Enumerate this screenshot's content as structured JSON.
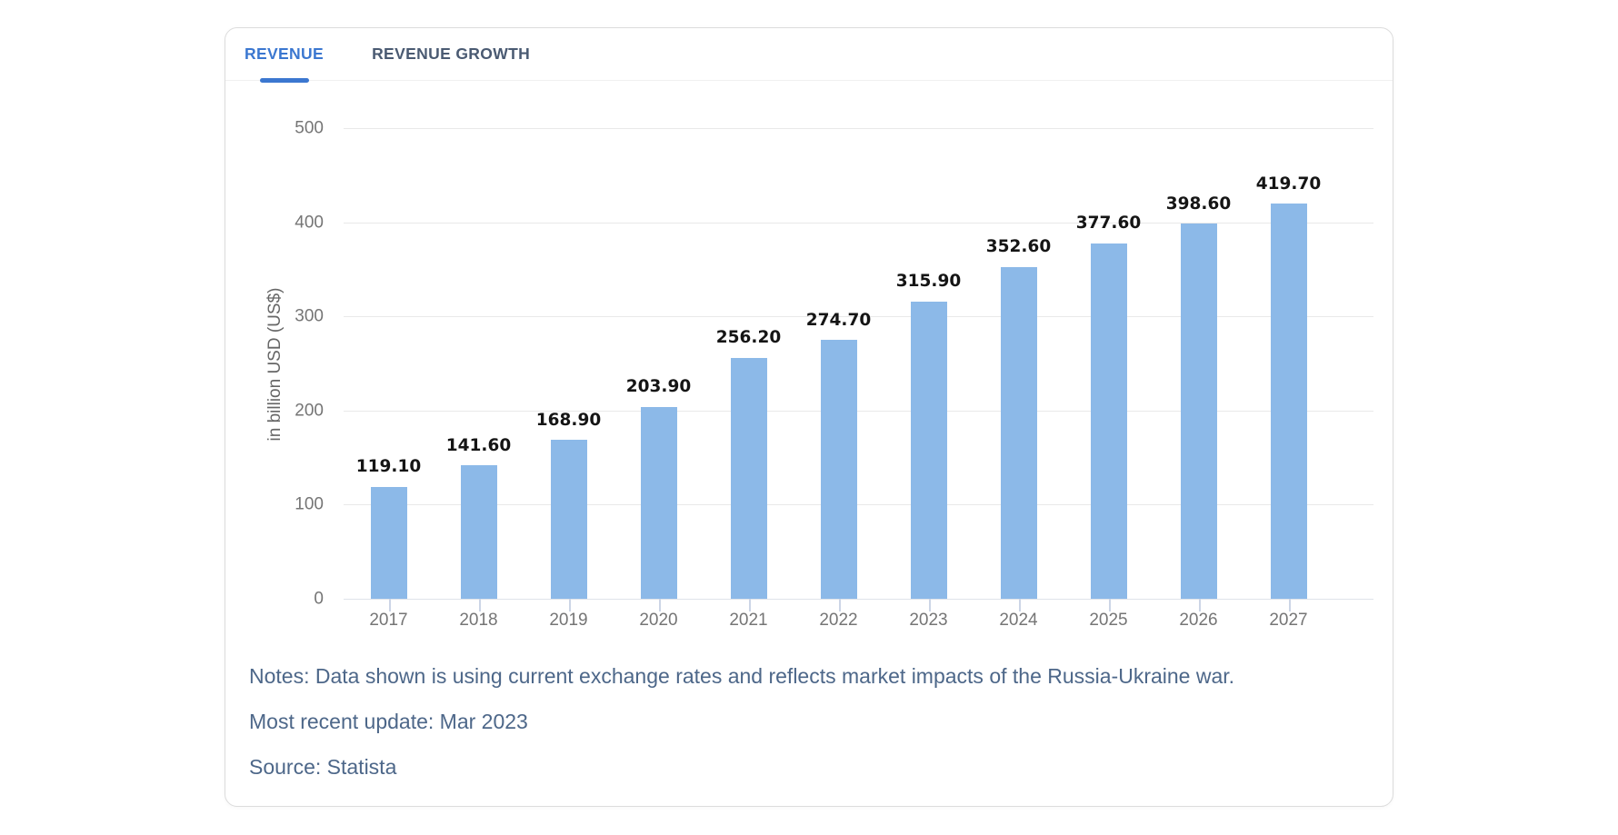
{
  "tabs": [
    {
      "label": "REVENUE",
      "active": true
    },
    {
      "label": "REVENUE GROWTH",
      "active": false
    }
  ],
  "chart_data": {
    "type": "bar",
    "title": "",
    "categories": [
      "2017",
      "2018",
      "2019",
      "2020",
      "2021",
      "2022",
      "2023",
      "2024",
      "2025",
      "2026",
      "2027"
    ],
    "values": [
      119.1,
      141.6,
      168.9,
      203.9,
      256.2,
      274.7,
      315.9,
      352.6,
      377.6,
      398.6,
      419.7
    ],
    "value_labels": [
      "119.10",
      "141.60",
      "168.90",
      "203.90",
      "256.20",
      "274.70",
      "315.90",
      "352.60",
      "377.60",
      "398.60",
      "419.70"
    ],
    "xlabel": "",
    "ylabel": "in billion USD (US$)",
    "yticks": [
      0,
      100,
      200,
      300,
      400,
      500
    ],
    "ylim": [
      0,
      500
    ],
    "grid": "horizontal",
    "legend": "none",
    "bar_color": "#8CB9E8"
  },
  "footer": {
    "notes": "Notes: Data shown is using current exchange rates and reflects market impacts of the Russia-Ukraine war.",
    "update": "Most recent update: Mar 2023",
    "source": "Source: Statista"
  },
  "colors": {
    "accent_blue": "#3B77D0",
    "inactive_tab": "#4A5A72",
    "bar_blue": "#8CB9E8",
    "notes_text": "#4D6789",
    "axis_text": "#757575"
  }
}
